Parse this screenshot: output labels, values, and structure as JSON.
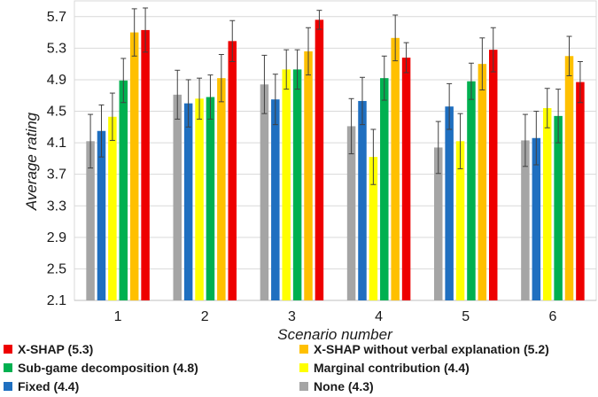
{
  "chart_data": {
    "type": "bar",
    "xlabel": "Scenario number",
    "ylabel": "Average rating",
    "ylim": [
      2.1,
      5.9
    ],
    "yticks": [
      2.1,
      2.5,
      2.9,
      3.3,
      3.7,
      4.1,
      4.5,
      4.9,
      5.3,
      5.7
    ],
    "grid": true,
    "legend_position": "bottom",
    "categories": [
      "1",
      "2",
      "3",
      "4",
      "5",
      "6"
    ],
    "series": [
      {
        "name": "None (4.3)",
        "color": "#a5a5a5",
        "values": [
          4.12,
          4.71,
          4.84,
          4.31,
          4.04,
          4.13
        ],
        "errors": [
          0.34,
          0.31,
          0.37,
          0.35,
          0.33,
          0.33
        ]
      },
      {
        "name": "Fixed (4.4)",
        "color": "#1f6fc0",
        "values": [
          4.25,
          4.6,
          4.65,
          4.63,
          4.56,
          4.16
        ],
        "errors": [
          0.33,
          0.3,
          0.32,
          0.3,
          0.29,
          0.34
        ]
      },
      {
        "name": "Marginal contribution (4.4)",
        "color": "#ffff00",
        "values": [
          4.43,
          4.66,
          5.03,
          3.92,
          4.12,
          4.54
        ],
        "errors": [
          0.3,
          0.26,
          0.25,
          0.35,
          0.35,
          0.25
        ]
      },
      {
        "name": "Sub-game decomposition (4.8)",
        "color": "#00b050",
        "values": [
          4.89,
          4.68,
          5.03,
          4.92,
          4.88,
          4.44
        ],
        "errors": [
          0.28,
          0.28,
          0.25,
          0.28,
          0.23,
          0.34
        ]
      },
      {
        "name": "X-SHAP without verbal explanation (5.2)",
        "color": "#ffc000",
        "values": [
          5.5,
          4.92,
          5.26,
          5.43,
          5.1,
          5.2
        ],
        "errors": [
          0.3,
          0.3,
          0.3,
          0.29,
          0.33,
          0.25
        ]
      },
      {
        "name": "X-SHAP (5.3)",
        "color": "#ee0000",
        "values": [
          5.53,
          5.39,
          5.66,
          5.18,
          5.28,
          4.87
        ],
        "errors": [
          0.28,
          0.26,
          0.12,
          0.19,
          0.28,
          0.26
        ]
      }
    ]
  }
}
